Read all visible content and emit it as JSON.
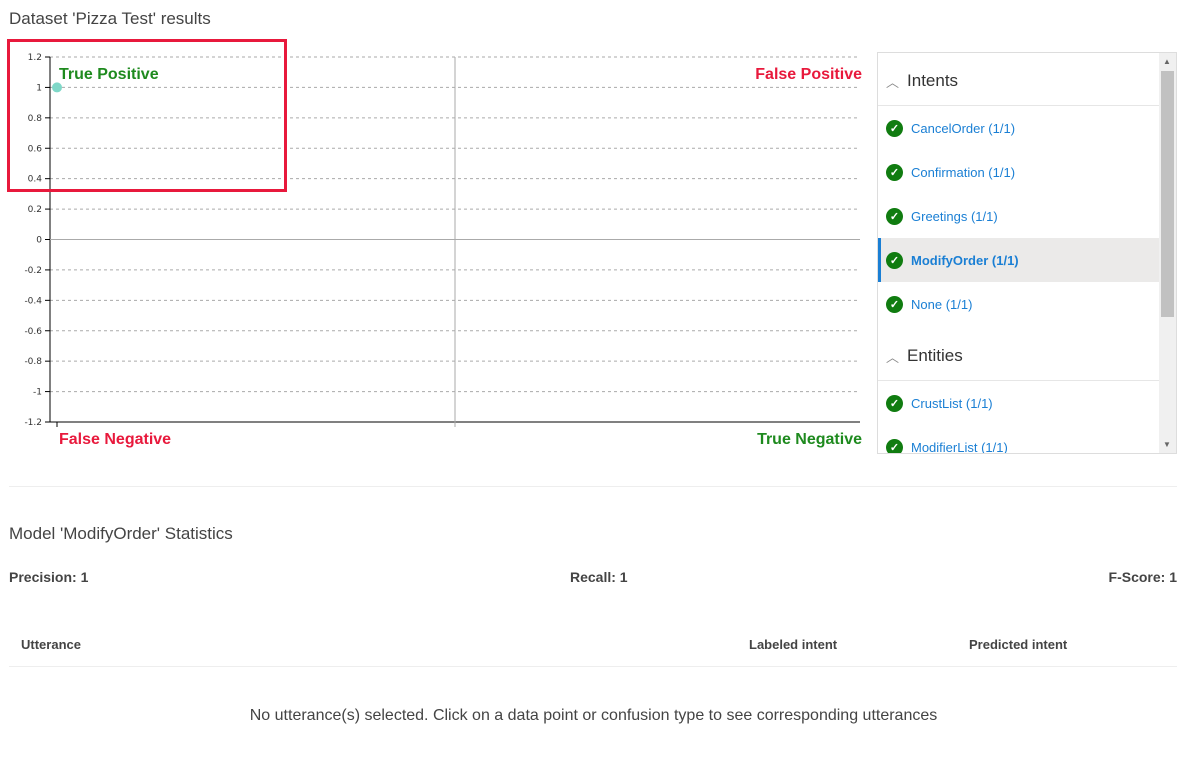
{
  "page": {
    "title": "Dataset 'Pizza Test' results"
  },
  "quadrants": {
    "tp": "True Positive",
    "fp": "False Positive",
    "fn": "False Negative",
    "tn": "True Negative",
    "tp_color": "#1e8a1e",
    "fp_color": "#e8193c"
  },
  "chart_data": {
    "type": "scatter",
    "ylim": [
      -1.2,
      1.2
    ],
    "yticks": [
      "1.2",
      "1",
      "0.8",
      "0.6",
      "0.4",
      "0.2",
      "0",
      "-0.2",
      "-0.4",
      "-0.6",
      "-0.8",
      "-1",
      "-1.2"
    ],
    "grid": true,
    "points": [
      {
        "x": 0,
        "y": 1
      }
    ],
    "point_color": "#7fd8c8"
  },
  "panel": {
    "intents_header": "Intents",
    "intents": [
      {
        "label": "CancelOrder (1/1)"
      },
      {
        "label": "Confirmation (1/1)"
      },
      {
        "label": "Greetings (1/1)"
      },
      {
        "label": "ModifyOrder (1/1)",
        "selected": true
      },
      {
        "label": "None (1/1)"
      }
    ],
    "entities_header": "Entities",
    "entities": [
      {
        "label": "CrustList (1/1)"
      },
      {
        "label": "ModifierList (1/1)"
      }
    ]
  },
  "stats": {
    "title": "Model 'ModifyOrder' Statistics",
    "precision": "Precision: 1",
    "recall": "Recall: 1",
    "fscore": "F-Score: 1"
  },
  "table": {
    "col_utterance": "Utterance",
    "col_labeled": "Labeled intent",
    "col_predicted": "Predicted intent",
    "empty": "No utterance(s) selected. Click on a data point or confusion type to see corresponding utterances"
  }
}
